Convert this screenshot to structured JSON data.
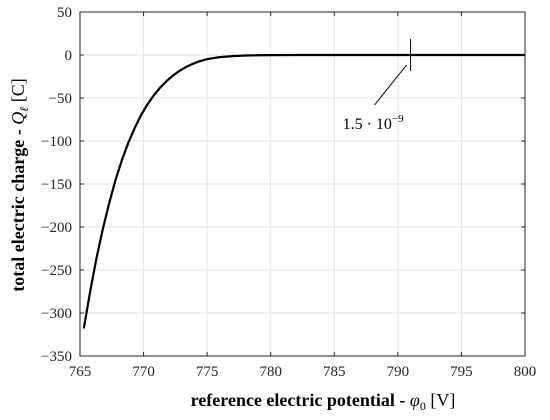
{
  "chart_data": {
    "type": "line",
    "title": "",
    "xlabel": "reference electric potential - φ0 [V]",
    "xlabel_parts": {
      "main": "reference electric potential - ",
      "var": "φ",
      "sub": "0",
      "unit": " [V]"
    },
    "ylabel": "total electric charge - Qℓ [C]",
    "ylabel_parts": {
      "main": "total electric charge - ",
      "var": "Q",
      "sub": "ℓ",
      "unit": " [C]"
    },
    "xlim": [
      765,
      800
    ],
    "ylim": [
      -350,
      50
    ],
    "xticks": [
      765,
      770,
      775,
      780,
      785,
      790,
      795,
      800
    ],
    "yticks": [
      50,
      0,
      -50,
      -100,
      -150,
      -200,
      -250,
      -300,
      -350
    ],
    "xtick_labels": [
      "765",
      "770",
      "775",
      "780",
      "785",
      "790",
      "795",
      "800"
    ],
    "ytick_labels": [
      "50",
      "0",
      "−50",
      "−100",
      "−150",
      "−200",
      "−250",
      "−300",
      "−350"
    ],
    "grid": true,
    "series": [
      {
        "color": "#000000",
        "x": [
          765.3,
          765.8,
          766.3,
          766.8,
          767.3,
          767.8,
          768.3,
          768.8,
          769.3,
          769.8,
          770.3,
          770.8,
          771.3,
          771.8,
          772.3,
          772.8,
          773.3,
          773.8,
          774.3,
          774.8,
          775.3,
          776,
          777,
          778,
          779,
          780,
          782,
          785,
          790,
          795,
          800
        ],
        "y": [
          -318,
          -275,
          -236,
          -202,
          -172,
          -145,
          -122,
          -102,
          -85,
          -70,
          -57.5,
          -47,
          -38,
          -30.5,
          -24,
          -18.7,
          -14.3,
          -10.7,
          -7.8,
          -5.6,
          -4,
          -2.5,
          -1.3,
          -0.6,
          -0.3,
          -0.1,
          0,
          0,
          0,
          0,
          0
        ]
      }
    ],
    "annotation": {
      "x": 791,
      "y": 0,
      "label_base": "1.5 · 10",
      "label_exp": "−9"
    }
  }
}
